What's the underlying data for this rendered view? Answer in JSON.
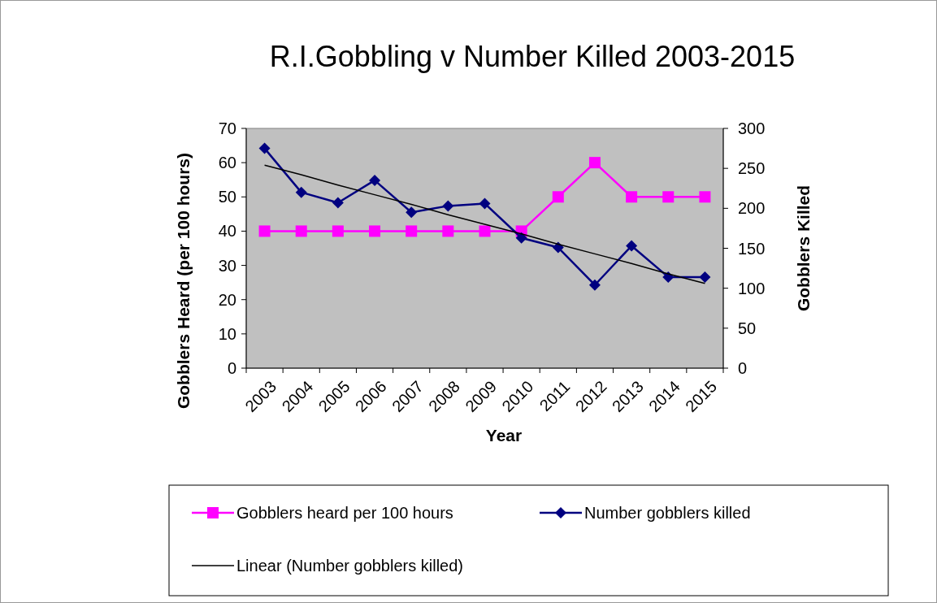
{
  "chart_data": {
    "type": "line",
    "title": "R.I.Gobbling v Number Killed 2003-2015",
    "xlabel": "Year",
    "ylabel": "Gobblers Heard (per 100 hours)",
    "y2label": "Gobblers Killed",
    "categories": [
      "2003",
      "2004",
      "2005",
      "2006",
      "2007",
      "2008",
      "2009",
      "2010",
      "2011",
      "2012",
      "2013",
      "2014",
      "2015"
    ],
    "series": [
      {
        "name": "Gobblers heard per 100 hours",
        "color": "#ff00ff",
        "marker": "square",
        "values": [
          40,
          40,
          40,
          40,
          40,
          40,
          40,
          40,
          50,
          60,
          50,
          50,
          50
        ]
      },
      {
        "name": "Number gobblers killed",
        "color": "#000080",
        "marker": "diamond",
        "axis": "y2",
        "values": [
          275,
          220,
          207,
          235,
          195,
          203,
          206,
          163,
          151,
          104,
          153,
          114,
          114
        ]
      },
      {
        "name": "Linear (Number gobblers killed)",
        "color": "#000000",
        "marker": "none",
        "axis": "y2",
        "values": [
          254,
          242,
          229,
          217,
          205,
          192,
          180,
          168,
          155,
          143,
          131,
          118,
          106
        ]
      }
    ],
    "ylim": [
      0,
      70
    ],
    "yticks": [
      0,
      10,
      20,
      30,
      40,
      50,
      60,
      70
    ],
    "y2lim": [
      0,
      300
    ],
    "y2ticks": [
      0,
      50,
      100,
      150,
      200,
      250,
      300
    ],
    "grid": false,
    "legend": "bottom"
  }
}
